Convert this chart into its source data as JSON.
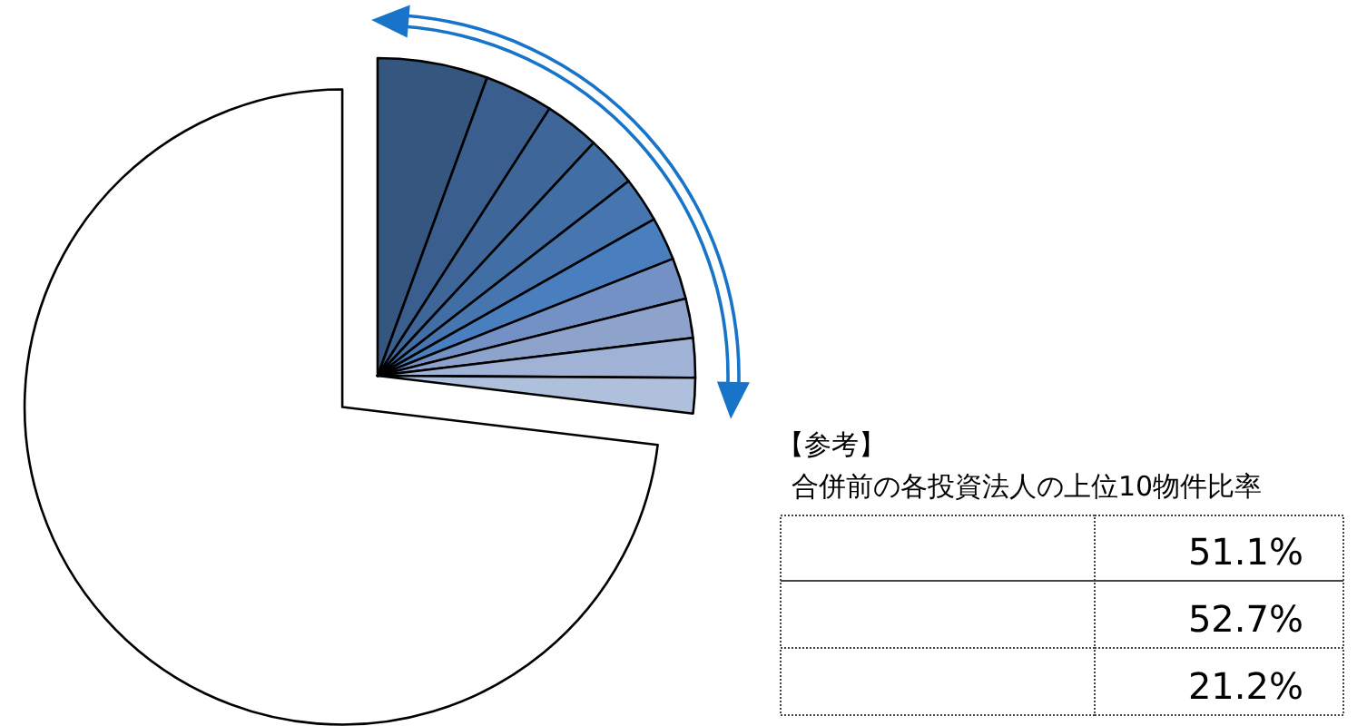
{
  "chart_data": {
    "type": "pie",
    "categories": [
      null,
      null,
      null,
      null,
      null,
      null,
      null,
      null,
      null,
      null,
      null
    ],
    "values": [
      5.6,
      3.5,
      2.8,
      2.6,
      2.3,
      2.2,
      2.1,
      2.0,
      2.0,
      1.8,
      73.1
    ],
    "colors": [
      "#34567f",
      "#3a5e8e",
      "#3e6699",
      "#416ea4",
      "#4675b0",
      "#4a7fbf",
      "#7391c4",
      "#8ea3cc",
      "#a0b3d6",
      "#afc0dc",
      "#ffffff"
    ],
    "annotations": [
      "【参考】",
      "合併前の各投資法人の上位10物件比率",
      "51.1%",
      "52.7%",
      "21.2%"
    ]
  }
}
